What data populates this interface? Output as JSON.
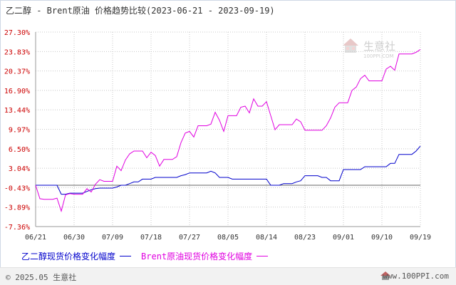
{
  "header": {
    "title": "乙二醇 - Brent原油 价格趋势比较(2023-06-21 - 2023-09-19)"
  },
  "watermark": {
    "brand": "生意社",
    "url": "100PPI.COM"
  },
  "legend": {
    "entries": [
      {
        "label": "乙二醇现货价格变化幅度",
        "color": "#0000cc"
      },
      {
        "label": "Brent原油现货价格变化幅度",
        "color": "#e000e0"
      }
    ]
  },
  "footer": {
    "copyright": "© 2025.05 生意社",
    "website": "www.100PPI.com"
  },
  "colors": {
    "ethylene_glycol": "#0000cc",
    "brent": "#e000e0",
    "ytick_text": "#cc0000",
    "zero_line": "#666666",
    "grid": "#c8c8c8"
  },
  "chart_data": {
    "type": "line",
    "title": "乙二醇 - Brent原油 价格趋势比较(2023-06-21 - 2023-09-19)",
    "xlabel": "",
    "ylabel": "",
    "x_start": "2023-06-21",
    "x_end": "2023-09-19",
    "x_ticks": [
      "06/21",
      "06/30",
      "07/09",
      "07/18",
      "07/27",
      "08/05",
      "08/14",
      "08/23",
      "09/01",
      "09/10",
      "09/19"
    ],
    "y_ticks": [
      "27.30%",
      "23.83%",
      "20.37%",
      "16.90%",
      "13.44%",
      "9.97%",
      "6.50%",
      "3.04%",
      "-0.43%",
      "-3.89%",
      "-7.36%"
    ],
    "y_tick_values": [
      27.3,
      23.83,
      20.37,
      16.9,
      13.44,
      9.97,
      6.5,
      3.04,
      -0.43,
      -3.89,
      -7.36
    ],
    "ylim": [
      -7.36,
      27.3
    ],
    "grid": true,
    "legend_position": "bottom",
    "series": [
      {
        "name": "乙二醇现货价格变化幅度",
        "color": "#0000cc",
        "points": [
          [
            "2023-06-21",
            0.0
          ],
          [
            "2023-06-22",
            0.0
          ],
          [
            "2023-06-23",
            0.0
          ],
          [
            "2023-06-24",
            0.0
          ],
          [
            "2023-06-25",
            0.0
          ],
          [
            "2023-06-26",
            0.0
          ],
          [
            "2023-06-27",
            -1.6
          ],
          [
            "2023-06-28",
            -1.6
          ],
          [
            "2023-06-29",
            -1.4
          ],
          [
            "2023-06-30",
            -1.4
          ],
          [
            "2023-07-01",
            -1.4
          ],
          [
            "2023-07-02",
            -1.4
          ],
          [
            "2023-07-03",
            -1.1
          ],
          [
            "2023-07-04",
            -0.8
          ],
          [
            "2023-07-05",
            -0.6
          ],
          [
            "2023-07-06",
            -0.5
          ],
          [
            "2023-07-07",
            -0.5
          ],
          [
            "2023-07-08",
            -0.5
          ],
          [
            "2023-07-09",
            -0.5
          ],
          [
            "2023-07-10",
            -0.3
          ],
          [
            "2023-07-11",
            0.0
          ],
          [
            "2023-07-12",
            0.0
          ],
          [
            "2023-07-13",
            0.3
          ],
          [
            "2023-07-14",
            0.6
          ],
          [
            "2023-07-15",
            0.6
          ],
          [
            "2023-07-16",
            1.1
          ],
          [
            "2023-07-17",
            1.1
          ],
          [
            "2023-07-18",
            1.1
          ],
          [
            "2023-07-19",
            1.4
          ],
          [
            "2023-07-20",
            1.4
          ],
          [
            "2023-07-21",
            1.4
          ],
          [
            "2023-07-22",
            1.4
          ],
          [
            "2023-07-23",
            1.4
          ],
          [
            "2023-07-24",
            1.4
          ],
          [
            "2023-07-25",
            1.7
          ],
          [
            "2023-07-26",
            1.9
          ],
          [
            "2023-07-27",
            2.2
          ],
          [
            "2023-07-28",
            2.2
          ],
          [
            "2023-07-29",
            2.2
          ],
          [
            "2023-07-30",
            2.2
          ],
          [
            "2023-07-31",
            2.2
          ],
          [
            "2023-08-01",
            2.5
          ],
          [
            "2023-08-02",
            2.2
          ],
          [
            "2023-08-03",
            1.4
          ],
          [
            "2023-08-04",
            1.4
          ],
          [
            "2023-08-05",
            1.4
          ],
          [
            "2023-08-06",
            1.1
          ],
          [
            "2023-08-07",
            1.1
          ],
          [
            "2023-08-08",
            1.1
          ],
          [
            "2023-08-09",
            1.1
          ],
          [
            "2023-08-10",
            1.1
          ],
          [
            "2023-08-11",
            1.1
          ],
          [
            "2023-08-12",
            1.1
          ],
          [
            "2023-08-13",
            1.1
          ],
          [
            "2023-08-14",
            1.1
          ],
          [
            "2023-08-15",
            0.0
          ],
          [
            "2023-08-16",
            0.0
          ],
          [
            "2023-08-17",
            0.0
          ],
          [
            "2023-08-18",
            0.3
          ],
          [
            "2023-08-19",
            0.3
          ],
          [
            "2023-08-20",
            0.3
          ],
          [
            "2023-08-21",
            0.6
          ],
          [
            "2023-08-22",
            0.8
          ],
          [
            "2023-08-23",
            1.7
          ],
          [
            "2023-08-24",
            1.7
          ],
          [
            "2023-08-25",
            1.7
          ],
          [
            "2023-08-26",
            1.7
          ],
          [
            "2023-08-27",
            1.4
          ],
          [
            "2023-08-28",
            1.4
          ],
          [
            "2023-08-29",
            0.8
          ],
          [
            "2023-08-30",
            0.8
          ],
          [
            "2023-08-31",
            0.8
          ],
          [
            "2023-09-01",
            2.8
          ],
          [
            "2023-09-02",
            2.8
          ],
          [
            "2023-09-03",
            2.8
          ],
          [
            "2023-09-04",
            2.8
          ],
          [
            "2023-09-05",
            2.8
          ],
          [
            "2023-09-06",
            3.3
          ],
          [
            "2023-09-07",
            3.3
          ],
          [
            "2023-09-08",
            3.3
          ],
          [
            "2023-09-09",
            3.3
          ],
          [
            "2023-09-10",
            3.3
          ],
          [
            "2023-09-11",
            3.3
          ],
          [
            "2023-09-12",
            3.9
          ],
          [
            "2023-09-13",
            3.9
          ],
          [
            "2023-09-14",
            5.5
          ],
          [
            "2023-09-15",
            5.5
          ],
          [
            "2023-09-16",
            5.5
          ],
          [
            "2023-09-17",
            5.5
          ],
          [
            "2023-09-18",
            6.1
          ],
          [
            "2023-09-19",
            7.0
          ]
        ]
      },
      {
        "name": "Brent原油现货价格变化幅度",
        "color": "#e000e0",
        "points": [
          [
            "2023-06-21",
            0.0
          ],
          [
            "2023-06-22",
            -2.4
          ],
          [
            "2023-06-23",
            -2.5
          ],
          [
            "2023-06-24",
            -2.5
          ],
          [
            "2023-06-25",
            -2.5
          ],
          [
            "2023-06-26",
            -2.3
          ],
          [
            "2023-06-27",
            -4.6
          ],
          [
            "2023-06-28",
            -1.7
          ],
          [
            "2023-06-29",
            -1.5
          ],
          [
            "2023-06-30",
            -1.6
          ],
          [
            "2023-07-01",
            -1.6
          ],
          [
            "2023-07-02",
            -1.6
          ],
          [
            "2023-07-03",
            -0.6
          ],
          [
            "2023-07-04",
            -1.2
          ],
          [
            "2023-07-05",
            0.2
          ],
          [
            "2023-07-06",
            1.0
          ],
          [
            "2023-07-07",
            0.7
          ],
          [
            "2023-07-08",
            0.7
          ],
          [
            "2023-07-09",
            0.7
          ],
          [
            "2023-07-10",
            3.4
          ],
          [
            "2023-07-11",
            2.6
          ],
          [
            "2023-07-12",
            4.5
          ],
          [
            "2023-07-13",
            5.6
          ],
          [
            "2023-07-14",
            6.1
          ],
          [
            "2023-07-15",
            6.1
          ],
          [
            "2023-07-16",
            6.1
          ],
          [
            "2023-07-17",
            4.9
          ],
          [
            "2023-07-18",
            5.9
          ],
          [
            "2023-07-19",
            5.3
          ],
          [
            "2023-07-20",
            3.4
          ],
          [
            "2023-07-21",
            4.6
          ],
          [
            "2023-07-22",
            4.6
          ],
          [
            "2023-07-23",
            4.6
          ],
          [
            "2023-07-24",
            5.1
          ],
          [
            "2023-07-25",
            7.6
          ],
          [
            "2023-07-26",
            9.3
          ],
          [
            "2023-07-27",
            9.6
          ],
          [
            "2023-07-28",
            8.6
          ],
          [
            "2023-07-29",
            10.6
          ],
          [
            "2023-07-30",
            10.6
          ],
          [
            "2023-07-31",
            10.6
          ],
          [
            "2023-08-01",
            10.9
          ],
          [
            "2023-08-02",
            13.0
          ],
          [
            "2023-08-03",
            11.6
          ],
          [
            "2023-08-04",
            9.6
          ],
          [
            "2023-08-05",
            12.4
          ],
          [
            "2023-08-06",
            12.4
          ],
          [
            "2023-08-07",
            12.4
          ],
          [
            "2023-08-08",
            13.9
          ],
          [
            "2023-08-09",
            14.1
          ],
          [
            "2023-08-10",
            12.9
          ],
          [
            "2023-08-11",
            15.4
          ],
          [
            "2023-08-12",
            14.1
          ],
          [
            "2023-08-13",
            14.1
          ],
          [
            "2023-08-14",
            14.9
          ],
          [
            "2023-08-15",
            12.4
          ],
          [
            "2023-08-16",
            9.9
          ],
          [
            "2023-08-17",
            10.8
          ],
          [
            "2023-08-18",
            10.8
          ],
          [
            "2023-08-19",
            10.8
          ],
          [
            "2023-08-20",
            10.8
          ],
          [
            "2023-08-21",
            11.8
          ],
          [
            "2023-08-22",
            11.3
          ],
          [
            "2023-08-23",
            9.8
          ],
          [
            "2023-08-24",
            9.8
          ],
          [
            "2023-08-25",
            9.8
          ],
          [
            "2023-08-26",
            9.8
          ],
          [
            "2023-08-27",
            9.8
          ],
          [
            "2023-08-28",
            10.6
          ],
          [
            "2023-08-29",
            12.0
          ],
          [
            "2023-08-30",
            13.9
          ],
          [
            "2023-08-31",
            14.7
          ],
          [
            "2023-09-01",
            14.7
          ],
          [
            "2023-09-02",
            14.7
          ],
          [
            "2023-09-03",
            16.9
          ],
          [
            "2023-09-04",
            17.5
          ],
          [
            "2023-09-05",
            19.0
          ],
          [
            "2023-09-06",
            19.6
          ],
          [
            "2023-09-07",
            18.6
          ],
          [
            "2023-09-08",
            18.6
          ],
          [
            "2023-09-09",
            18.6
          ],
          [
            "2023-09-10",
            18.6
          ],
          [
            "2023-09-11",
            20.7
          ],
          [
            "2023-09-12",
            21.2
          ],
          [
            "2023-09-13",
            20.5
          ],
          [
            "2023-09-14",
            23.4
          ],
          [
            "2023-09-15",
            23.4
          ],
          [
            "2023-09-16",
            23.4
          ],
          [
            "2023-09-17",
            23.4
          ],
          [
            "2023-09-18",
            23.7
          ],
          [
            "2023-09-19",
            24.2
          ]
        ]
      }
    ]
  }
}
